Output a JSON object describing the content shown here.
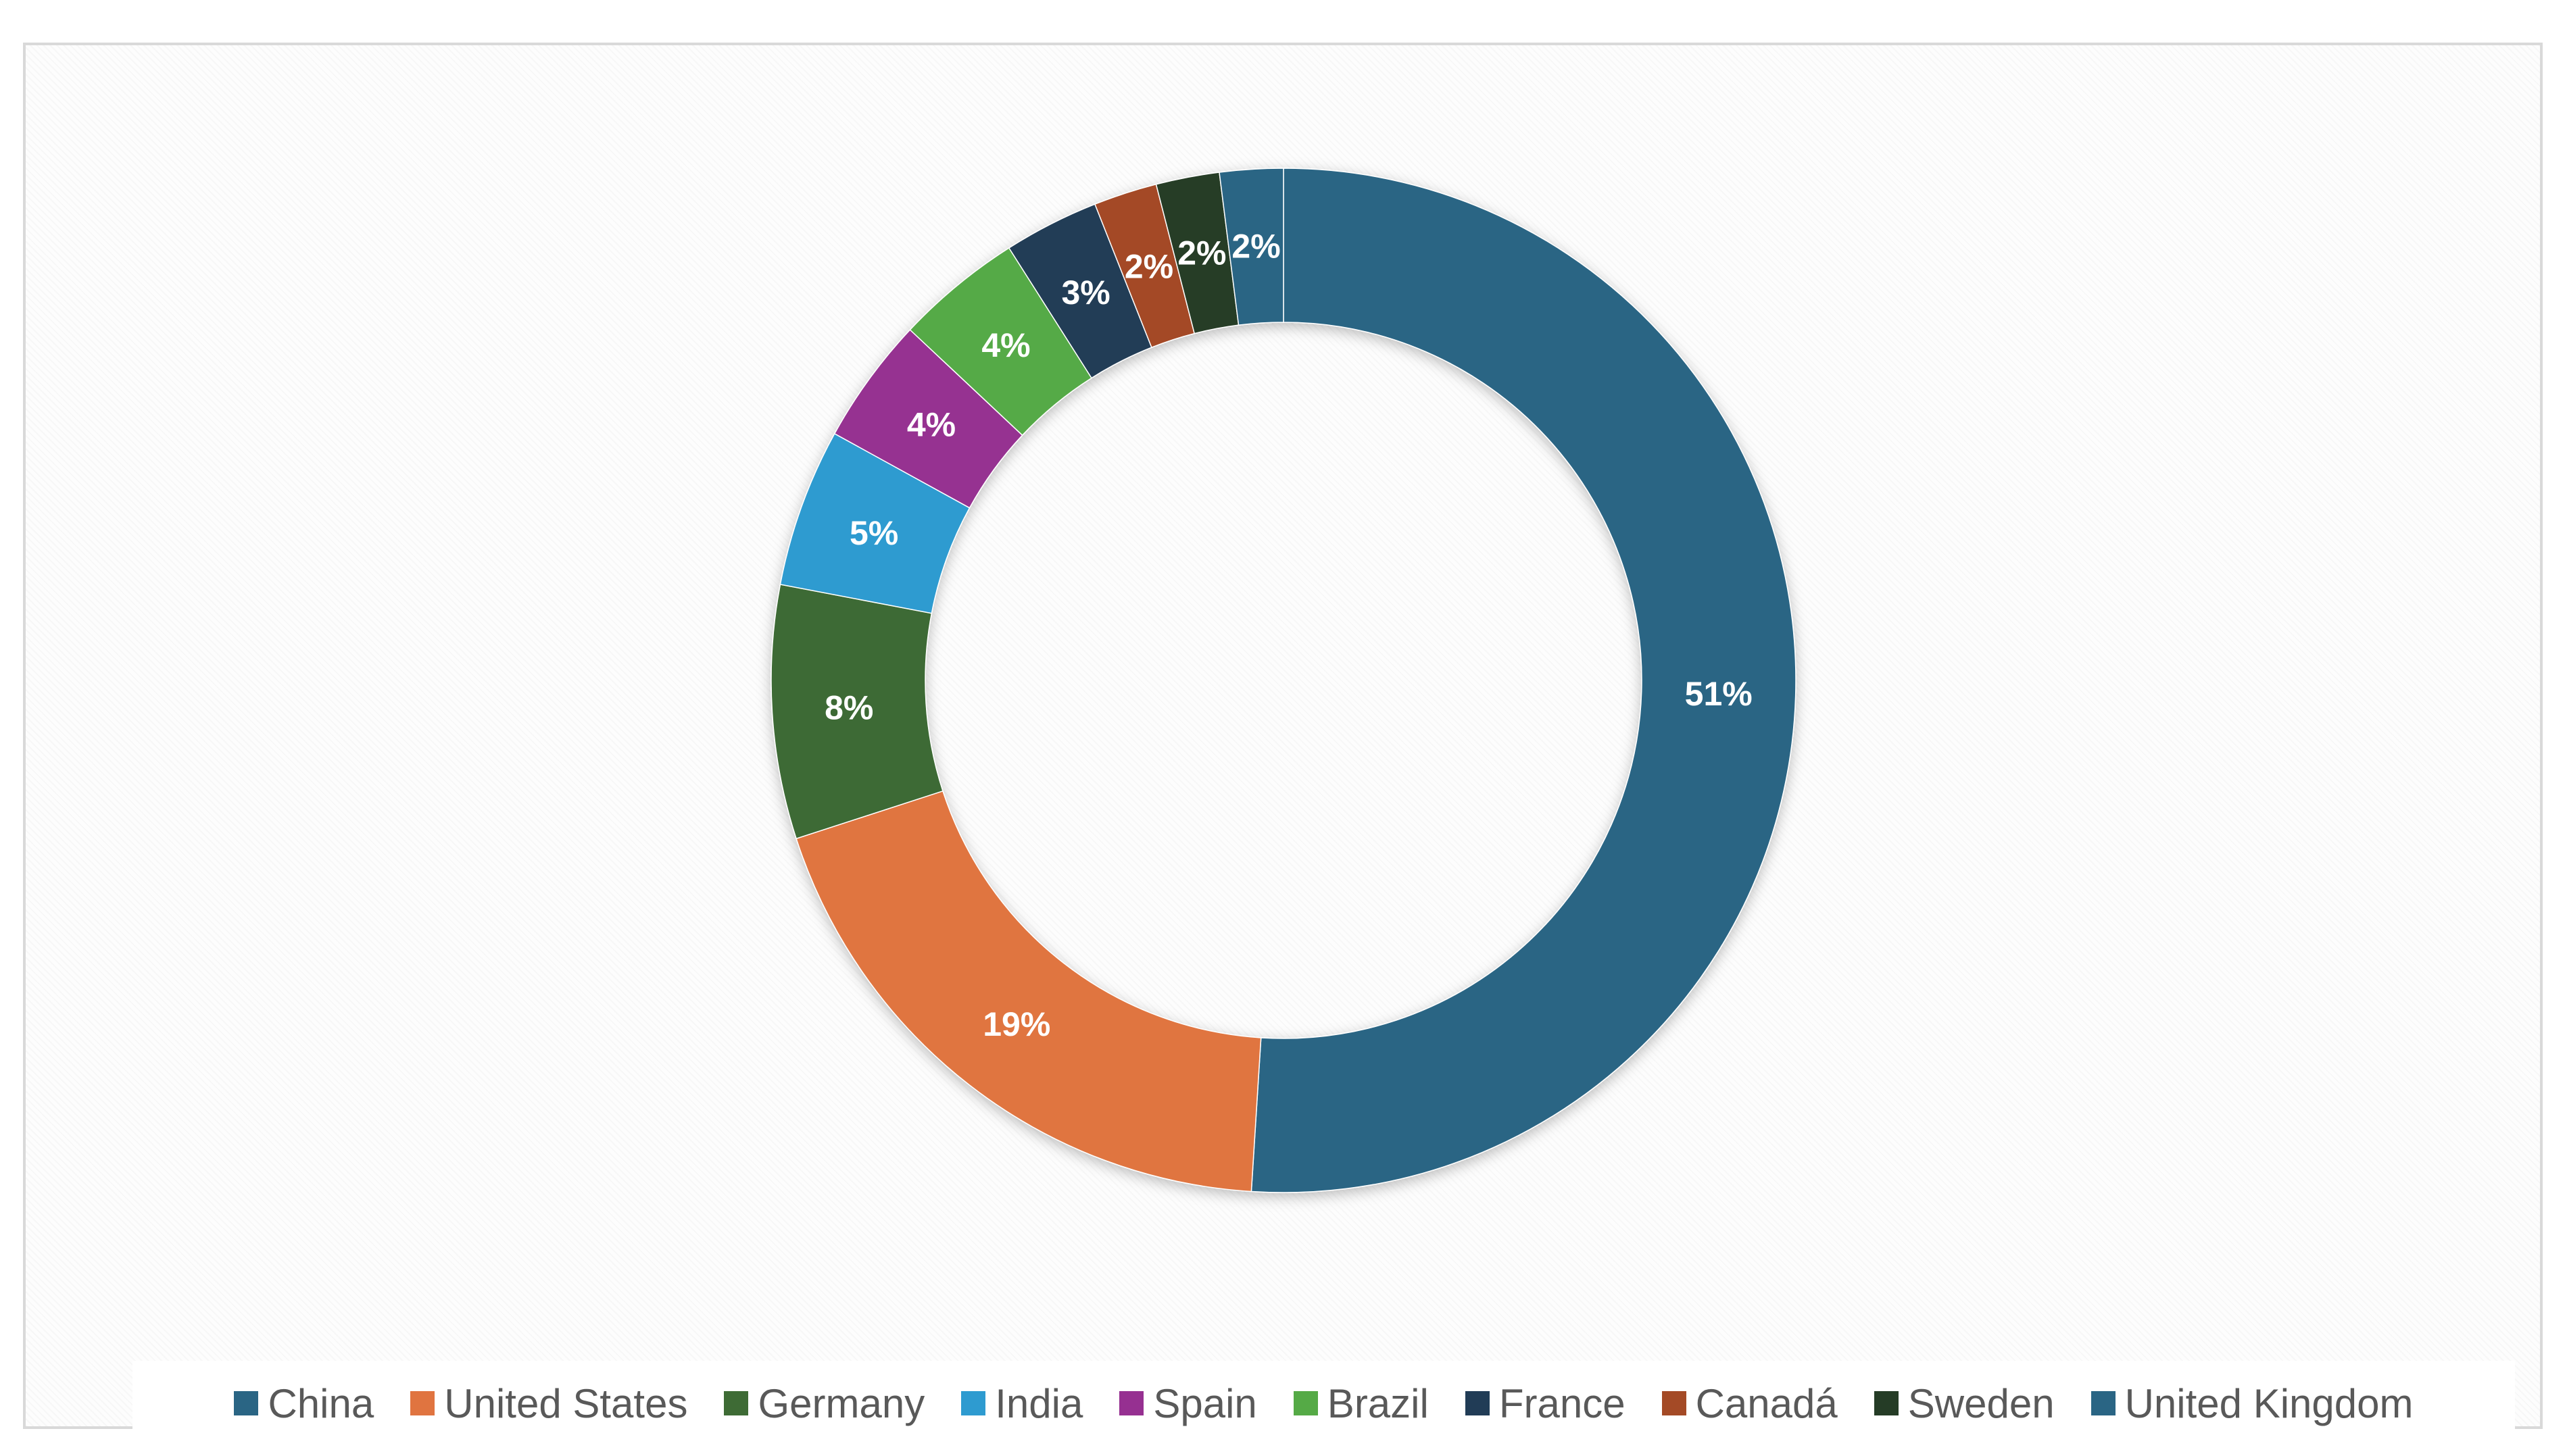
{
  "chart_data": {
    "type": "pie",
    "variant": "donut",
    "title": "",
    "categories": [
      "China",
      "United States",
      "Germany",
      "India",
      "Spain",
      "Brazil",
      "France",
      "Canadá",
      "Sweden",
      "United Kingdom"
    ],
    "values": [
      51,
      19,
      8,
      5,
      4,
      4,
      3,
      2,
      2,
      2
    ],
    "data_labels": [
      "51%",
      "19%",
      "8%",
      "5%",
      "4%",
      "4%",
      "3%",
      "2%",
      "2%",
      "2%"
    ],
    "colors": [
      "#2a6584",
      "#e07440",
      "#3e6b35",
      "#2e9bd0",
      "#963091",
      "#55aa46",
      "#213c56",
      "#a44a26",
      "#253c26",
      "#2a6584"
    ],
    "legend_position": "bottom",
    "grid": false
  }
}
